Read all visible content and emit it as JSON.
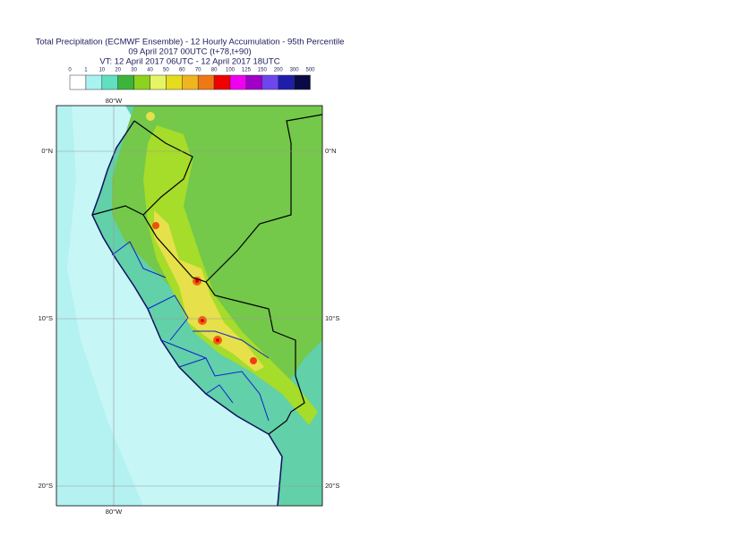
{
  "header": {
    "title": "Total Precipitation (ECMWF Ensemble) - 12 Hourly Accumulation - 95th Percentile",
    "subtitle": "09 April 2017 00UTC (t+78,t+90)",
    "valid_time": "VT: 12 April 2017 06UTC - 12 April 2017 18UTC"
  },
  "legend": {
    "labels": [
      "0",
      "1",
      "10",
      "20",
      "30",
      "40",
      "50",
      "60",
      "70",
      "80",
      "100",
      "125",
      "150",
      "200",
      "300",
      "500"
    ],
    "colors": [
      "#ffffff",
      "#a8f2f2",
      "#5fe0c0",
      "#3cb43c",
      "#8cd21e",
      "#e6f564",
      "#e6dc1e",
      "#f0b41e",
      "#f07814",
      "#f00000",
      "#f000f0",
      "#a000c8",
      "#6e46f0",
      "#1e1eaa",
      "#0a0a46"
    ]
  },
  "map": {
    "lon_labels": [
      "80°W"
    ],
    "lat_labels": [
      "0°N",
      "10°S",
      "20°S"
    ]
  }
}
